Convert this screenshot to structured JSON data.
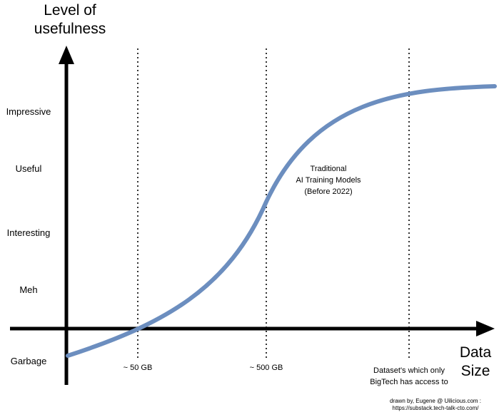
{
  "chart_data": {
    "type": "line",
    "title": "",
    "ylabel": "Level of usefulness",
    "xlabel": "Data Size",
    "y_levels": [
      "Impressive",
      "Useful",
      "Interesting",
      "Meh",
      "Garbage"
    ],
    "x_markers": [
      "~ 50 GB",
      "~ 500 GB",
      "Dataset's which only BigTech has access to"
    ],
    "series": [
      {
        "name": "Traditional AI Training Models (Before 2022)",
        "color": "#6c8ebf"
      }
    ],
    "curve_shape": "sigmoid",
    "gridlines": "vertical dotted at markers"
  },
  "labels": {
    "y_title_line1": "Level of",
    "y_title_line2": "usefulness",
    "x_title_line1": "Data",
    "x_title_line2": "Size",
    "impressive": "Impressive",
    "useful": "Useful",
    "interesting": "Interesting",
    "meh": "Meh",
    "garbage": "Garbage",
    "x_50gb": "~ 50 GB",
    "x_500gb": "~ 500 GB",
    "x_bigtech": "Dataset's which only\nBigTech has access to",
    "curve_annotation": "Traditional\nAI Training Models\n(Before 2022)",
    "credit_line1": "drawn by, Eugene @ Uilicious.com :",
    "credit_line2": "https://substack.tech-talk-cto.com/"
  },
  "colors": {
    "curve": "#6c8ebf",
    "axis": "#000000",
    "grid": "#333333"
  }
}
